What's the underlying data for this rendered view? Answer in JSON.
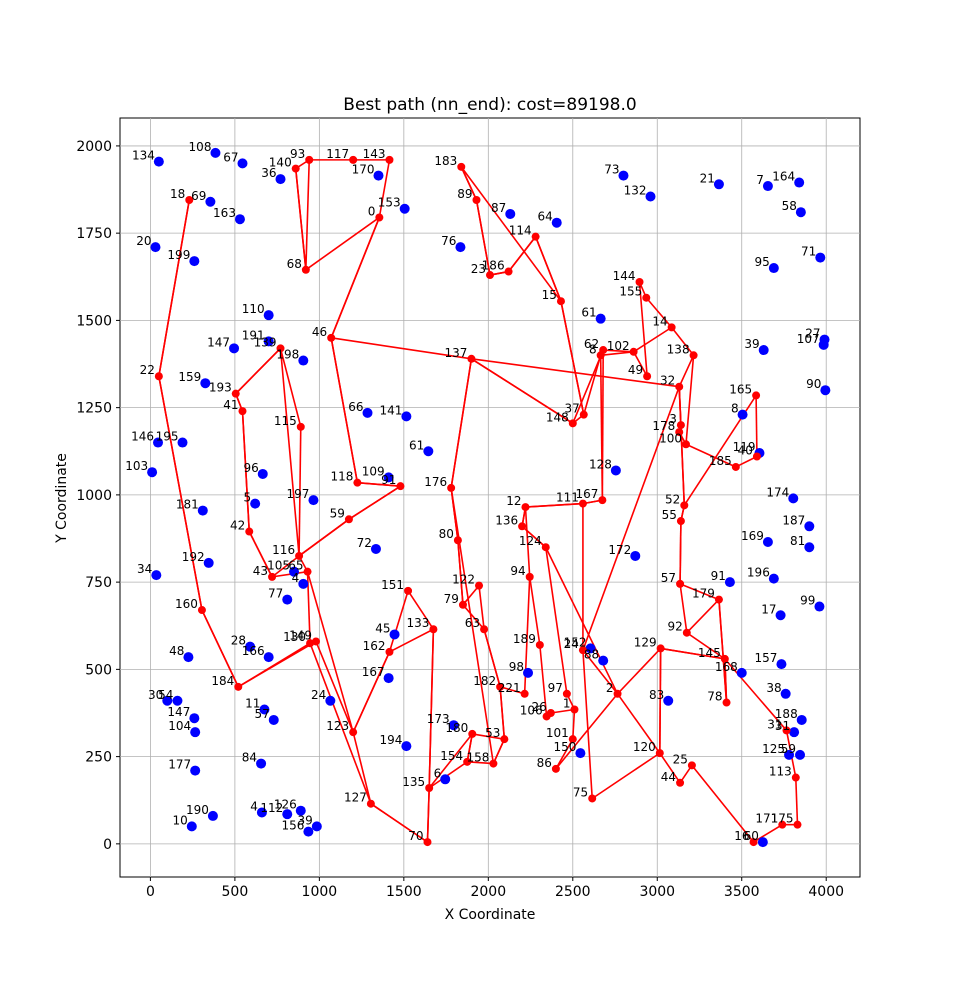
{
  "chart_data": {
    "type": "scatter",
    "title": "Best path (nn_end): cost=89198.0",
    "xlabel": "X Coordinate",
    "ylabel": "Y Coordinate",
    "xlim": [
      -180,
      4200
    ],
    "ylim": [
      -95,
      2080
    ],
    "xticks": [
      0,
      500,
      1000,
      1500,
      2000,
      2500,
      3000,
      3500,
      4000
    ],
    "yticks": [
      0,
      250,
      500,
      750,
      1000,
      1250,
      1500,
      1750,
      2000
    ],
    "grid": true,
    "colors": {
      "path": "#ff0000",
      "path_node": "#ff0000",
      "other_node": "#0000ff"
    },
    "path_nodes": [
      {
        "id": "93",
        "x": 940,
        "y": 1960
      },
      {
        "id": "140",
        "x": 860,
        "y": 1935
      },
      {
        "id": "117",
        "x": 1200,
        "y": 1960
      },
      {
        "id": "143",
        "x": 1415,
        "y": 1960
      },
      {
        "id": "0",
        "x": 1355,
        "y": 1795
      },
      {
        "id": "68",
        "x": 920,
        "y": 1645
      },
      {
        "id": "18",
        "x": 230,
        "y": 1845
      },
      {
        "id": "22",
        "x": 50,
        "y": 1340
      },
      {
        "id": "46",
        "x": 1070,
        "y": 1450
      },
      {
        "id": "139",
        "x": 770,
        "y": 1420
      },
      {
        "id": "193",
        "x": 505,
        "y": 1290
      },
      {
        "id": "41",
        "x": 545,
        "y": 1240
      },
      {
        "id": "115",
        "x": 890,
        "y": 1195
      },
      {
        "id": "118",
        "x": 1225,
        "y": 1035
      },
      {
        "id": "91",
        "x": 1480,
        "y": 1025
      },
      {
        "id": "59",
        "x": 1175,
        "y": 930
      },
      {
        "id": "42",
        "x": 585,
        "y": 895
      },
      {
        "id": "116",
        "x": 880,
        "y": 825
      },
      {
        "id": "65",
        "x": 930,
        "y": 780
      },
      {
        "id": "43",
        "x": 720,
        "y": 765
      },
      {
        "id": "160",
        "x": 305,
        "y": 670
      },
      {
        "id": "149",
        "x": 980,
        "y": 580
      },
      {
        "id": "130",
        "x": 945,
        "y": 575
      },
      {
        "id": "184",
        "x": 520,
        "y": 450
      },
      {
        "id": "123",
        "x": 1200,
        "y": 320
      },
      {
        "id": "162",
        "x": 1415,
        "y": 550
      },
      {
        "id": "133",
        "x": 1675,
        "y": 615
      },
      {
        "id": "151",
        "x": 1525,
        "y": 725
      },
      {
        "id": "127",
        "x": 1305,
        "y": 115
      },
      {
        "id": "70",
        "x": 1640,
        "y": 5
      },
      {
        "id": "135",
        "x": 1650,
        "y": 160
      },
      {
        "id": "154",
        "x": 1875,
        "y": 235
      },
      {
        "id": "180",
        "x": 1905,
        "y": 315
      },
      {
        "id": "158",
        "x": 2030,
        "y": 230
      },
      {
        "id": "53",
        "x": 2095,
        "y": 300
      },
      {
        "id": "176",
        "x": 1780,
        "y": 1020
      },
      {
        "id": "80",
        "x": 1820,
        "y": 870
      },
      {
        "id": "79",
        "x": 1850,
        "y": 685
      },
      {
        "id": "122",
        "x": 1945,
        "y": 740
      },
      {
        "id": "63",
        "x": 1975,
        "y": 615
      },
      {
        "id": "182",
        "x": 2070,
        "y": 450
      },
      {
        "id": "221",
        "x": 2215,
        "y": 430
      },
      {
        "id": "94",
        "x": 2245,
        "y": 765
      },
      {
        "id": "189",
        "x": 2305,
        "y": 570
      },
      {
        "id": "12",
        "x": 2220,
        "y": 965
      },
      {
        "id": "136",
        "x": 2200,
        "y": 910
      },
      {
        "id": "124",
        "x": 2340,
        "y": 850
      },
      {
        "id": "111",
        "x": 2560,
        "y": 975
      },
      {
        "id": "167",
        "x": 2675,
        "y": 985
      },
      {
        "id": "106",
        "x": 2345,
        "y": 365
      },
      {
        "id": "26",
        "x": 2370,
        "y": 375
      },
      {
        "id": "97",
        "x": 2465,
        "y": 430
      },
      {
        "id": "1",
        "x": 2510,
        "y": 385
      },
      {
        "id": "101",
        "x": 2500,
        "y": 300
      },
      {
        "id": "86",
        "x": 2400,
        "y": 215
      },
      {
        "id": "75",
        "x": 2615,
        "y": 130
      },
      {
        "id": "2",
        "x": 2765,
        "y": 430
      },
      {
        "id": "24",
        "x": 2560,
        "y": 555
      },
      {
        "id": "120",
        "x": 3015,
        "y": 260
      },
      {
        "id": "129",
        "x": 3020,
        "y": 560
      },
      {
        "id": "145",
        "x": 3400,
        "y": 530
      },
      {
        "id": "78",
        "x": 3410,
        "y": 405
      },
      {
        "id": "92",
        "x": 3175,
        "y": 605
      },
      {
        "id": "179",
        "x": 3365,
        "y": 700
      },
      {
        "id": "57",
        "x": 3135,
        "y": 745
      },
      {
        "id": "55",
        "x": 3140,
        "y": 925
      },
      {
        "id": "52",
        "x": 3160,
        "y": 970
      },
      {
        "id": "44",
        "x": 3135,
        "y": 175
      },
      {
        "id": "25",
        "x": 3205,
        "y": 225
      },
      {
        "id": "16",
        "x": 3570,
        "y": 5
      },
      {
        "id": "171",
        "x": 3740,
        "y": 55
      },
      {
        "id": "175",
        "x": 3830,
        "y": 55
      },
      {
        "id": "113",
        "x": 3820,
        "y": 190
      },
      {
        "id": "31",
        "x": 3765,
        "y": 325
      },
      {
        "id": "183",
        "x": 1840,
        "y": 1940
      },
      {
        "id": "89",
        "x": 1930,
        "y": 1845
      },
      {
        "id": "23",
        "x": 2010,
        "y": 1630
      },
      {
        "id": "186",
        "x": 2120,
        "y": 1640
      },
      {
        "id": "114",
        "x": 2280,
        "y": 1740
      },
      {
        "id": "15",
        "x": 2430,
        "y": 1555
      },
      {
        "id": "37",
        "x": 2565,
        "y": 1230
      },
      {
        "id": "148",
        "x": 2500,
        "y": 1205
      },
      {
        "id": "62",
        "x": 2680,
        "y": 1415
      },
      {
        "id": "8",
        "x": 2665,
        "y": 1400
      },
      {
        "id": "137",
        "x": 1900,
        "y": 1390
      },
      {
        "id": "102",
        "x": 2860,
        "y": 1410
      },
      {
        "id": "49",
        "x": 2940,
        "y": 1340
      },
      {
        "id": "144",
        "x": 2895,
        "y": 1610
      },
      {
        "id": "155",
        "x": 2935,
        "y": 1565
      },
      {
        "id": "14",
        "x": 3085,
        "y": 1480
      },
      {
        "id": "138",
        "x": 3215,
        "y": 1400
      },
      {
        "id": "32",
        "x": 3130,
        "y": 1310
      },
      {
        "id": "3",
        "x": 3140,
        "y": 1200
      },
      {
        "id": "178",
        "x": 3130,
        "y": 1180
      },
      {
        "id": "100",
        "x": 3170,
        "y": 1145
      },
      {
        "id": "185",
        "x": 3465,
        "y": 1080
      },
      {
        "id": "40",
        "x": 3590,
        "y": 1110
      },
      {
        "id": "165",
        "x": 3585,
        "y": 1285
      }
    ],
    "other_nodes": [
      {
        "id": "134",
        "x": 50,
        "y": 1955
      },
      {
        "id": "108",
        "x": 385,
        "y": 1980
      },
      {
        "id": "67",
        "x": 545,
        "y": 1950
      },
      {
        "id": "36",
        "x": 770,
        "y": 1905
      },
      {
        "id": "170",
        "x": 1350,
        "y": 1915
      },
      {
        "id": "153",
        "x": 1505,
        "y": 1820
      },
      {
        "id": "69",
        "x": 355,
        "y": 1840
      },
      {
        "id": "163",
        "x": 530,
        "y": 1790
      },
      {
        "id": "20",
        "x": 30,
        "y": 1710
      },
      {
        "id": "199",
        "x": 260,
        "y": 1670
      },
      {
        "id": "110",
        "x": 700,
        "y": 1515
      },
      {
        "id": "191",
        "x": 700,
        "y": 1440
      },
      {
        "id": "147",
        "x": 495,
        "y": 1420
      },
      {
        "id": "198",
        "x": 905,
        "y": 1385
      },
      {
        "id": "159",
        "x": 325,
        "y": 1320
      },
      {
        "id": "66",
        "x": 1285,
        "y": 1235
      },
      {
        "id": "141",
        "x": 1515,
        "y": 1225
      },
      {
        "id": "61",
        "x": 1645,
        "y": 1125
      },
      {
        "id": "146",
        "x": 45,
        "y": 1150
      },
      {
        "id": "195",
        "x": 190,
        "y": 1150
      },
      {
        "id": "103",
        "x": 10,
        "y": 1065
      },
      {
        "id": "96",
        "x": 665,
        "y": 1060
      },
      {
        "id": "109",
        "x": 1410,
        "y": 1050
      },
      {
        "id": "5",
        "x": 620,
        "y": 975
      },
      {
        "id": "197",
        "x": 965,
        "y": 985
      },
      {
        "id": "181",
        "x": 310,
        "y": 955
      },
      {
        "id": "72",
        "x": 1335,
        "y": 845
      },
      {
        "id": "192",
        "x": 345,
        "y": 805
      },
      {
        "id": "34",
        "x": 35,
        "y": 770
      },
      {
        "id": "105",
        "x": 850,
        "y": 780
      },
      {
        "id": "4",
        "x": 905,
        "y": 745
      },
      {
        "id": "77",
        "x": 810,
        "y": 700
      },
      {
        "id": "45",
        "x": 1445,
        "y": 600
      },
      {
        "id": "28",
        "x": 590,
        "y": 565
      },
      {
        "id": "166",
        "x": 700,
        "y": 535
      },
      {
        "id": "48",
        "x": 225,
        "y": 535
      },
      {
        "id": "167b",
        "x": 1410,
        "y": 475
      },
      {
        "id": "30",
        "x": 100,
        "y": 410
      },
      {
        "id": "54",
        "x": 160,
        "y": 410
      },
      {
        "id": "147b",
        "x": 260,
        "y": 360
      },
      {
        "id": "104",
        "x": 265,
        "y": 320
      },
      {
        "id": "11",
        "x": 675,
        "y": 385
      },
      {
        "id": "57b",
        "x": 730,
        "y": 355
      },
      {
        "id": "24b",
        "x": 1065,
        "y": 410
      },
      {
        "id": "177",
        "x": 265,
        "y": 210
      },
      {
        "id": "84",
        "x": 655,
        "y": 230
      },
      {
        "id": "194",
        "x": 1515,
        "y": 280
      },
      {
        "id": "173",
        "x": 1795,
        "y": 340
      },
      {
        "id": "6",
        "x": 1745,
        "y": 185
      },
      {
        "id": "4b",
        "x": 660,
        "y": 90
      },
      {
        "id": "112",
        "x": 810,
        "y": 85
      },
      {
        "id": "126",
        "x": 890,
        "y": 95
      },
      {
        "id": "39",
        "x": 985,
        "y": 50
      },
      {
        "id": "156",
        "x": 935,
        "y": 35
      },
      {
        "id": "190",
        "x": 370,
        "y": 80
      },
      {
        "id": "10",
        "x": 245,
        "y": 50
      },
      {
        "id": "73",
        "x": 2800,
        "y": 1915
      },
      {
        "id": "132",
        "x": 2960,
        "y": 1855
      },
      {
        "id": "21",
        "x": 3365,
        "y": 1890
      },
      {
        "id": "7",
        "x": 3655,
        "y": 1885
      },
      {
        "id": "164",
        "x": 3840,
        "y": 1895
      },
      {
        "id": "58",
        "x": 3850,
        "y": 1810
      },
      {
        "id": "87",
        "x": 2130,
        "y": 1805
      },
      {
        "id": "64",
        "x": 2405,
        "y": 1780
      },
      {
        "id": "76",
        "x": 1835,
        "y": 1710
      },
      {
        "id": "95",
        "x": 3690,
        "y": 1650
      },
      {
        "id": "71",
        "x": 3965,
        "y": 1680
      },
      {
        "id": "61b",
        "x": 2665,
        "y": 1505
      },
      {
        "id": "27",
        "x": 3990,
        "y": 1445
      },
      {
        "id": "107",
        "x": 3985,
        "y": 1430
      },
      {
        "id": "39b",
        "x": 3630,
        "y": 1415
      },
      {
        "id": "90",
        "x": 3995,
        "y": 1300
      },
      {
        "id": "8b",
        "x": 3505,
        "y": 1230
      },
      {
        "id": "119",
        "x": 3605,
        "y": 1120
      },
      {
        "id": "128",
        "x": 2755,
        "y": 1070
      },
      {
        "id": "174",
        "x": 3805,
        "y": 990
      },
      {
        "id": "187",
        "x": 3900,
        "y": 910
      },
      {
        "id": "169",
        "x": 3655,
        "y": 865
      },
      {
        "id": "81",
        "x": 3900,
        "y": 850
      },
      {
        "id": "172",
        "x": 2870,
        "y": 825
      },
      {
        "id": "91b",
        "x": 3430,
        "y": 750
      },
      {
        "id": "196",
        "x": 3690,
        "y": 760
      },
      {
        "id": "17",
        "x": 3730,
        "y": 655
      },
      {
        "id": "99",
        "x": 3960,
        "y": 680
      },
      {
        "id": "152",
        "x": 2605,
        "y": 560
      },
      {
        "id": "88",
        "x": 2680,
        "y": 525
      },
      {
        "id": "98",
        "x": 2235,
        "y": 490
      },
      {
        "id": "157",
        "x": 3735,
        "y": 515
      },
      {
        "id": "168",
        "x": 3500,
        "y": 490
      },
      {
        "id": "38",
        "x": 3760,
        "y": 430
      },
      {
        "id": "83",
        "x": 3065,
        "y": 410
      },
      {
        "id": "188",
        "x": 3855,
        "y": 355
      },
      {
        "id": "31b",
        "x": 3810,
        "y": 320
      },
      {
        "id": "125",
        "x": 3780,
        "y": 255
      },
      {
        "id": "59b",
        "x": 3845,
        "y": 255
      },
      {
        "id": "150",
        "x": 2545,
        "y": 260
      },
      {
        "id": "60",
        "x": 3625,
        "y": 5
      }
    ],
    "route": [
      "93",
      "140",
      "68",
      "0",
      "46",
      "118",
      "91",
      "59",
      "116",
      "139",
      "193",
      "41",
      "42",
      "43",
      "65",
      "123",
      "162",
      "133",
      "135",
      "70",
      "127",
      "130",
      "149",
      "184",
      "160",
      "22",
      "18",
      "...",
      "183",
      "89",
      "23",
      "186",
      "114",
      "15",
      "37",
      "148",
      "62",
      "8",
      "167",
      "111",
      "12",
      "136",
      "124",
      "2",
      "120",
      "129",
      "145",
      "78",
      "179",
      "57",
      "55",
      "52",
      "32",
      "137",
      "176",
      "80",
      "79",
      "63",
      "182",
      "53",
      "158",
      "154",
      "180",
      "135"
    ]
  },
  "labels_visible": [
    "134",
    "108",
    "67",
    "36",
    "140",
    "93",
    "117",
    "143",
    "170",
    "183",
    "73",
    "132",
    "21",
    "7",
    "164",
    "18",
    "69",
    "163",
    "153",
    "89",
    "87",
    "64",
    "58",
    "20",
    "199",
    "76",
    "114",
    "0",
    "68",
    "23",
    "186",
    "95",
    "71",
    "144",
    "155",
    "15",
    "61",
    "27",
    "107",
    "110",
    "191",
    "147",
    "139",
    "198",
    "46",
    "14",
    "62",
    "102",
    "138",
    "39",
    "22",
    "159",
    "193",
    "49",
    "32",
    "165",
    "90",
    "41",
    "66",
    "141",
    "137",
    "37",
    "148",
    "3",
    "178",
    "100",
    "8",
    "146",
    "195",
    "61",
    "119",
    "40",
    "185",
    "103",
    "96",
    "118",
    "91",
    "128",
    "176",
    "174",
    "5",
    "197",
    "181",
    "59",
    "12",
    "111",
    "167",
    "52",
    "187",
    "55",
    "136",
    "42",
    "72",
    "80",
    "124",
    "169",
    "81",
    "172",
    "116",
    "105",
    "65",
    "192",
    "34",
    "43",
    "4",
    "151",
    "122",
    "94",
    "57",
    "91",
    "196",
    "179",
    "17",
    "99",
    "160",
    "77",
    "79",
    "63",
    "92",
    "45",
    "133",
    "130",
    "149",
    "189",
    "152",
    "24",
    "88",
    "129",
    "145",
    "28",
    "166",
    "162",
    "48",
    "167",
    "98",
    "168",
    "157",
    "182",
    "30",
    "54",
    "184",
    "136",
    "221",
    "97",
    "83",
    "78",
    "38",
    "11",
    "147",
    "57",
    "24",
    "106",
    "26",
    "1",
    "104",
    "123",
    "173",
    "180",
    "53",
    "188",
    "31",
    "101",
    "156",
    "120",
    "185",
    "194",
    "13",
    "59",
    "177",
    "84",
    "154",
    "158",
    "86",
    "25",
    "44",
    "113",
    "135",
    "6",
    "127",
    "75",
    "4",
    "112",
    "126",
    "190",
    "10",
    "156",
    "39",
    "171",
    "175",
    "70",
    "16",
    "60"
  ]
}
